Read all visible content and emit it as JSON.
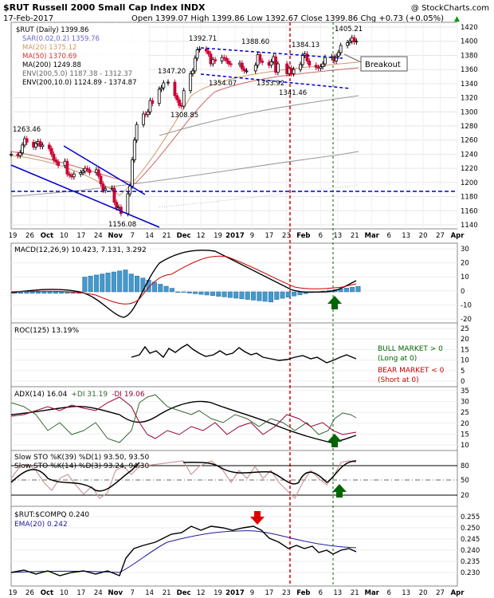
{
  "header": {
    "symbol_title": "$RUT Russell 2000 Small Cap Index INDX",
    "copyright": "@ StockCharts.com",
    "date": "17-Feb-2017",
    "ohlc": "Open 1399.07  High 1399.86  Low 1392.67  Close 1399.86  Chg +0.73 (+0.05%)",
    "up_arrow": "▲"
  },
  "colors": {
    "bull_candle": "#000000",
    "bear_candle": "#cc0033",
    "sar": "#6666cc",
    "ma20": "#cc9966",
    "ma50": "#cc6666",
    "ma200": "#999999",
    "envelope": "#999999",
    "trendline": "#0000cc",
    "red_marker": "#dd0000",
    "green_marker": "#006600",
    "macd_hist": "#4499cc",
    "ema": "#1a1a99"
  },
  "main_panel": {
    "legend": [
      {
        "text": "$RUT (Daily) 1399.86",
        "color": "#000000"
      },
      {
        "text": "SAR(0.02,0.2) 1359.76",
        "color": "#6666cc"
      },
      {
        "text": "MA(20) 1375.12",
        "color": "#cc9966"
      },
      {
        "text": "MA(50) 1370.69",
        "color": "#cc3333"
      },
      {
        "text": "MA(200) 1249.88",
        "color": "#000000"
      },
      {
        "text": "ENV(200,5.0) 1187.38 - 1312.37",
        "color": "#666666"
      },
      {
        "text": "ENV(200,10.0) 1124.89 - 1374.87",
        "color": "#000000"
      }
    ],
    "y_ticks": [
      "1420",
      "1400",
      "1380",
      "1360",
      "1340",
      "1320",
      "1300",
      "1280",
      "1260",
      "1240",
      "1220",
      "1200",
      "1180",
      "1160",
      "1140"
    ],
    "annotations": [
      "1263.46",
      "1392.71",
      "1388.60",
      "1384.13",
      "1405.21",
      "1347.20",
      "1354.07",
      "1353.92",
      "1341.46",
      "1308.85",
      "1156.08"
    ],
    "breakout_label": "Breakout"
  },
  "x_axis": {
    "labels": [
      "19",
      "26",
      "Oct",
      "10",
      "17",
      "24",
      "Nov",
      "7",
      "14",
      "21",
      "Dec",
      "12",
      "19",
      "2017",
      "9",
      "17",
      "23",
      "Feb",
      "6",
      "13",
      "21",
      "Mar",
      "6",
      "13",
      "20",
      "27",
      "Apr"
    ]
  },
  "macd_panel": {
    "label": "MACD(12,26,9) 10.423, 7.131, 3.292",
    "y_ticks": [
      "30",
      "20",
      "10",
      "0",
      "-10",
      "-20"
    ]
  },
  "roc_panel": {
    "label": "ROC(125) 13.19%",
    "y_ticks": [
      "25",
      "20",
      "15",
      "10",
      "5",
      "0"
    ],
    "notes": [
      {
        "text": "BULL MARKET > 0",
        "color": "#006600"
      },
      {
        "text": "(Long at 0)",
        "color": "#006600"
      },
      {
        "text": "BEAR MARKET < 0",
        "color": "#cc0000"
      },
      {
        "text": "(Short at 0)",
        "color": "#cc0000"
      }
    ]
  },
  "adx_panel": {
    "label_adx": "ADX(14) 16.04",
    "label_plus": "+DI 31.19",
    "label_minus": "-DI 19.06",
    "y_ticks": [
      "35",
      "30",
      "25",
      "20",
      "15",
      "10"
    ]
  },
  "sto_panel": {
    "label1": "Slow STO %K(39) %D(1) 93.50, 93.50",
    "label2": "Slow STO %K(14) %D(3) 93.24, 94.30",
    "y_ticks": [
      "80",
      "50",
      "20"
    ]
  },
  "ratio_panel": {
    "label": "$RUT:$COMPQ 0.240",
    "ema_label": "EMA(20) 0.242",
    "y_ticks": [
      "0.255",
      "0.250",
      "0.245",
      "0.240",
      "0.235",
      "0.230"
    ]
  },
  "chart_data": {
    "type": "line",
    "title": "$RUT Russell 2000 Small Cap Index INDX",
    "ylim": [
      1140,
      1420
    ],
    "x_start": "2016-09-16",
    "x_end": "2017-04-03",
    "price_series": {
      "name": "$RUT (Daily)",
      "dates": [
        "2016-09-16",
        "2016-09-19",
        "2016-09-20",
        "2016-09-21",
        "2016-09-22",
        "2016-09-23",
        "2016-09-26",
        "2016-09-27",
        "2016-09-28",
        "2016-09-29",
        "2016-09-30",
        "2016-10-03",
        "2016-10-04",
        "2016-10-05",
        "2016-10-06",
        "2016-10-07",
        "2016-10-10",
        "2016-10-11",
        "2016-10-12",
        "2016-10-13",
        "2016-10-14",
        "2016-10-17",
        "2016-10-18",
        "2016-10-19",
        "2016-10-20",
        "2016-10-21",
        "2016-10-24",
        "2016-10-25",
        "2016-10-26",
        "2016-10-27",
        "2016-10-28",
        "2016-10-31",
        "2016-11-01",
        "2016-11-02",
        "2016-11-03",
        "2016-11-04",
        "2016-11-07",
        "2016-11-08",
        "2016-11-09",
        "2016-11-10",
        "2016-11-11",
        "2016-11-14",
        "2016-11-15",
        "2016-11-16",
        "2016-11-17",
        "2016-11-18",
        "2016-11-21",
        "2016-11-22",
        "2016-11-23",
        "2016-11-25",
        "2016-11-28",
        "2016-11-29",
        "2016-11-30",
        "2016-12-01",
        "2016-12-02",
        "2016-12-05",
        "2016-12-06",
        "2016-12-07",
        "2016-12-08",
        "2016-12-09",
        "2016-12-12",
        "2016-12-13",
        "2016-12-14",
        "2016-12-15",
        "2016-12-16",
        "2016-12-19",
        "2016-12-20",
        "2016-12-21",
        "2016-12-22",
        "2016-12-23",
        "2016-12-27",
        "2016-12-28",
        "2016-12-29",
        "2016-12-30",
        "2017-01-03",
        "2017-01-04",
        "2017-01-05",
        "2017-01-06",
        "2017-01-09",
        "2017-01-10",
        "2017-01-11",
        "2017-01-12",
        "2017-01-13",
        "2017-01-17",
        "2017-01-18",
        "2017-01-19",
        "2017-01-20",
        "2017-01-23",
        "2017-01-24",
        "2017-01-25",
        "2017-01-26",
        "2017-01-27",
        "2017-01-30",
        "2017-01-31",
        "2017-02-01",
        "2017-02-02",
        "2017-02-03",
        "2017-02-06",
        "2017-02-07",
        "2017-02-08",
        "2017-02-09",
        "2017-02-10",
        "2017-02-13",
        "2017-02-14",
        "2017-02-15",
        "2017-02-16",
        "2017-02-17"
      ],
      "close": [
        1240,
        1238,
        1242,
        1253,
        1262,
        1257,
        1250,
        1255,
        1258,
        1251,
        1253,
        1248,
        1240,
        1232,
        1229,
        1224,
        1230,
        1212,
        1210,
        1208,
        1212,
        1214,
        1216,
        1220,
        1218,
        1214,
        1218,
        1209,
        1198,
        1189,
        1191,
        1192,
        1172,
        1164,
        1165,
        1156,
        1184,
        1195,
        1232,
        1260,
        1282,
        1297,
        1296,
        1300,
        1316,
        1312,
        1332,
        1334,
        1341,
        1342,
        1323,
        1317,
        1309,
        1308,
        1330,
        1354,
        1358,
        1376,
        1388,
        1389,
        1386,
        1382,
        1368,
        1374,
        1372,
        1377,
        1376,
        1372,
        1368,
        1367,
        1369,
        1361,
        1358,
        1358,
        1366,
        1381,
        1372,
        1370,
        1366,
        1371,
        1378,
        1356,
        1368,
        1354,
        1362,
        1354,
        1360,
        1367,
        1380,
        1382,
        1372,
        1366,
        1363,
        1362,
        1364,
        1368,
        1377,
        1378,
        1372,
        1379,
        1384,
        1394,
        1398,
        1400,
        1405,
        1399,
        1400
      ]
    },
    "macd": {
      "macd": 10.423,
      "signal": 7.131,
      "histogram": 3.292
    },
    "roc125": 13.19,
    "adx": {
      "adx": 16.04,
      "plus_di": 31.19,
      "minus_di": 19.06
    },
    "stochastics": {
      "k39": 93.5,
      "d1": 93.5,
      "k14": 93.24,
      "d3": 94.3
    },
    "ratio": {
      "value": 0.24,
      "ema20": 0.242
    }
  }
}
